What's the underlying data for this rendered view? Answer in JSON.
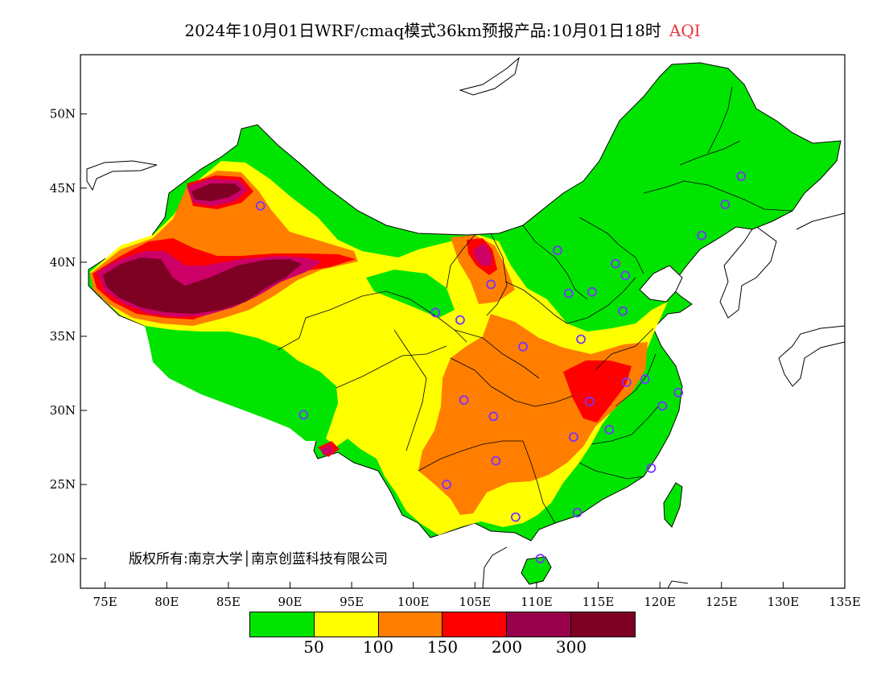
{
  "title": {
    "main": "2024年10月01日WRF/cmaq模式36km预报产品:10月01日18时",
    "variable": "AQI"
  },
  "copyright": "版权所有:南京大学│南京创蓝科技有限公司",
  "map": {
    "lon_range": [
      73,
      135
    ],
    "lat_range": [
      18,
      54
    ],
    "x_ticks": [
      "75E",
      "80E",
      "85E",
      "90E",
      "95E",
      "100E",
      "105E",
      "110E",
      "115E",
      "120E",
      "125E",
      "130E",
      "135E"
    ],
    "y_ticks": [
      "20N",
      "25N",
      "30N",
      "35N",
      "40N",
      "45N",
      "50N"
    ],
    "stations": [
      [
        87.6,
        43.8
      ],
      [
        91.1,
        29.7
      ],
      [
        101.8,
        36.6
      ],
      [
        103.8,
        36.1
      ],
      [
        106.3,
        38.5
      ],
      [
        111.7,
        40.8
      ],
      [
        116.4,
        39.9
      ],
      [
        117.2,
        39.1
      ],
      [
        114.5,
        38.0
      ],
      [
        112.6,
        37.9
      ],
      [
        117.0,
        36.7
      ],
      [
        113.6,
        34.8
      ],
      [
        108.9,
        34.3
      ],
      [
        104.1,
        30.7
      ],
      [
        106.5,
        29.6
      ],
      [
        106.7,
        26.6
      ],
      [
        102.7,
        25.0
      ],
      [
        108.3,
        22.8
      ],
      [
        110.3,
        20.0
      ],
      [
        113.3,
        23.1
      ],
      [
        114.3,
        30.6
      ],
      [
        113.0,
        28.2
      ],
      [
        115.9,
        28.7
      ],
      [
        117.3,
        31.9
      ],
      [
        118.8,
        32.1
      ],
      [
        120.2,
        30.3
      ],
      [
        121.5,
        31.2
      ],
      [
        119.3,
        26.1
      ],
      [
        123.4,
        41.8
      ],
      [
        125.3,
        43.9
      ],
      [
        126.6,
        45.8
      ]
    ]
  },
  "legend": {
    "colors": [
      "#00e400",
      "#ffff00",
      "#ff7e00",
      "#ff0000",
      "#99004c",
      "#7e0023"
    ],
    "labels": [
      "50",
      "100",
      "150",
      "200",
      "300"
    ]
  },
  "colors": {
    "good": "#00e400",
    "moderate": "#ffff00",
    "usg": "#ff7e00",
    "unhealthy": "#ff0000",
    "very_unhealthy": "#cc0066",
    "hazardous": "#7e0023",
    "station": "#7a33ff"
  }
}
